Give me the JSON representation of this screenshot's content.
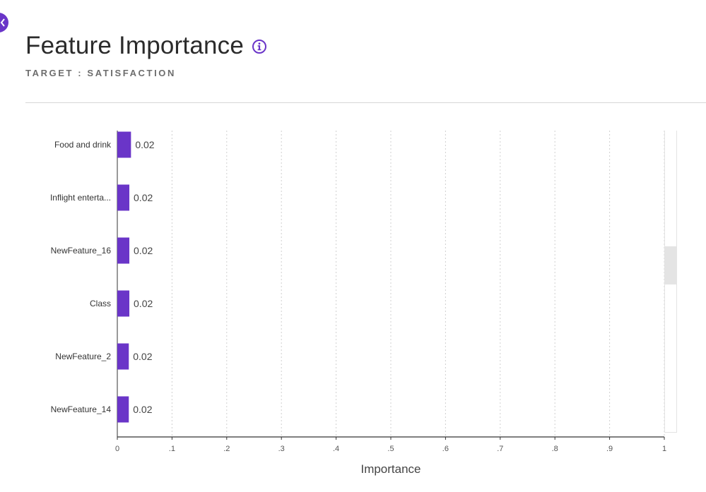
{
  "header": {
    "title": "Feature Importance",
    "subtitle": "TARGET : SATISFACTION"
  },
  "colors": {
    "accent": "#6a35c8",
    "bar": "#6a35c8"
  },
  "icons": {
    "back": "chevron-left-icon",
    "info": "info-icon"
  },
  "chart_data": {
    "type": "bar",
    "orientation": "horizontal",
    "categories": [
      "Food and drink",
      "Inflight enterta...",
      "NewFeature_16",
      "Class",
      "NewFeature_2",
      "NewFeature_14"
    ],
    "values": [
      0.025,
      0.022,
      0.022,
      0.022,
      0.021,
      0.021
    ],
    "data_labels": [
      "0.02",
      "0.02",
      "0.02",
      "0.02",
      "0.02",
      "0.02"
    ],
    "xlabel": "Importance",
    "xlim": [
      0,
      1
    ],
    "xticks": [
      0,
      0.1,
      0.2,
      0.3,
      0.4,
      0.5,
      0.6,
      0.7,
      0.8,
      0.9,
      1
    ],
    "xtick_labels": [
      "0",
      ".1",
      ".2",
      ".3",
      ".4",
      ".5",
      ".6",
      ".7",
      ".8",
      ".9",
      "1"
    ],
    "grid": "vertical dotted"
  }
}
